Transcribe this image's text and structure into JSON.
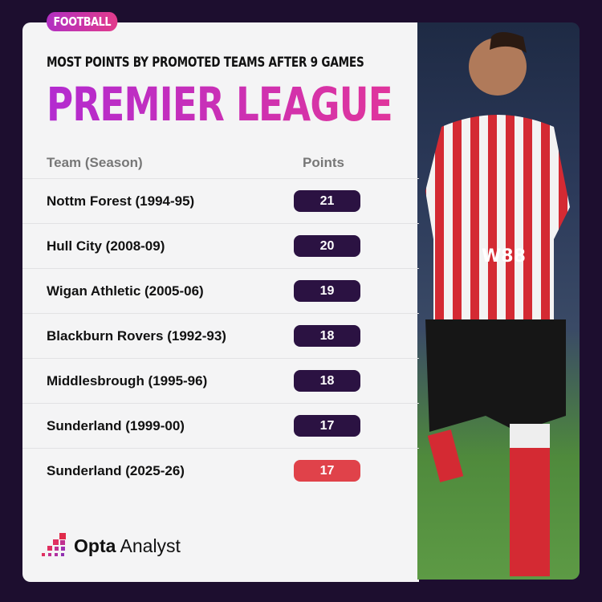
{
  "tag": "FOOTBALL",
  "subtitle": "MOST POINTS BY PROMOTED TEAMS AFTER 9 GAMES",
  "title": "PREMIER LEAGUE",
  "chart_data": {
    "type": "table",
    "columns": [
      "Team (Season)",
      "Points"
    ],
    "rows": [
      {
        "team": "Nottm Forest (1994-95)",
        "points": 21
      },
      {
        "team": "Hull City (2008-09)",
        "points": 20
      },
      {
        "team": "Wigan Athletic (2005-06)",
        "points": 19
      },
      {
        "team": "Blackburn Rovers (1992-93)",
        "points": 18
      },
      {
        "team": "Middlesbrough (1995-96)",
        "points": 18
      },
      {
        "team": "Sunderland (1999-00)",
        "points": 17
      },
      {
        "team": "Sunderland (2025-26)",
        "points": 17
      }
    ],
    "highlight_row": 6,
    "colors": {
      "pill": "#2b1242",
      "highlight": "#e0424a",
      "title": "#c02fc0"
    }
  },
  "logo": {
    "bold": "Opta",
    "light": "Analyst"
  },
  "photo": {
    "shirt_text": "W88"
  }
}
